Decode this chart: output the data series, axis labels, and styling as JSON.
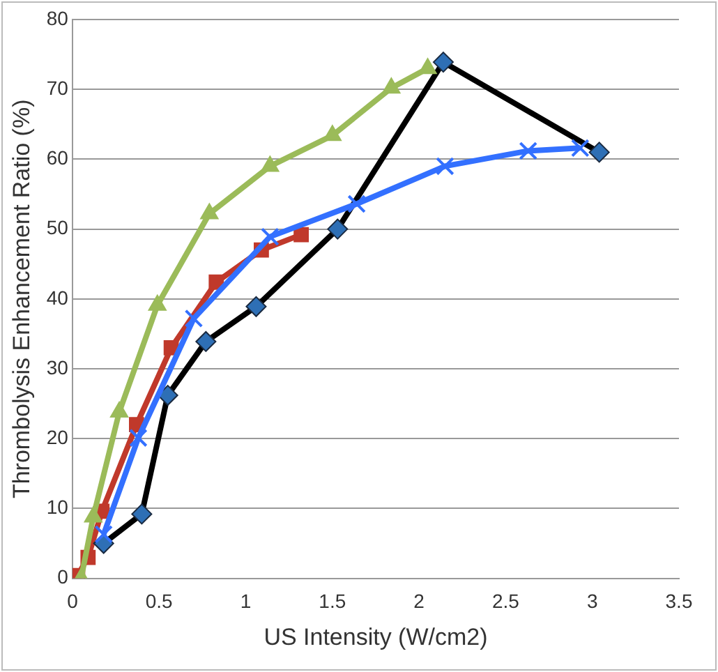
{
  "chart_data": {
    "type": "line",
    "xlabel": "US Intensity (W/cm2)",
    "ylabel": "Thrombolysis Enhancement Ratio (%)",
    "xlim": [
      0,
      3.5
    ],
    "xticks": [
      0,
      0.5,
      1,
      1.5,
      2,
      2.5,
      3,
      3.5
    ],
    "ylim": [
      0,
      80
    ],
    "yticks": [
      0,
      10,
      20,
      30,
      40,
      50,
      60,
      70,
      80
    ],
    "grid": "y",
    "legend": false,
    "series": [
      {
        "color": "#c0392b",
        "marker": "square",
        "x": [
          0.03,
          0.09,
          0.17,
          0.37,
          0.57,
          0.83,
          1.09,
          1.32
        ],
        "values": [
          0.4,
          3,
          9.6,
          22,
          33,
          42.4,
          47,
          49.2
        ]
      },
      {
        "color": "#000000",
        "marker": "diamond",
        "x": [
          0.18,
          0.4,
          0.55,
          0.77,
          1.06,
          1.53,
          2.14,
          3.04
        ],
        "values": [
          5,
          9.2,
          26.2,
          33.9,
          38.9,
          50,
          73.9,
          61
        ]
      },
      {
        "color": "#9bbb59",
        "marker": "triangle",
        "x": [
          0.05,
          0.12,
          0.27,
          0.49,
          0.79,
          1.14,
          1.5,
          1.84,
          2.05
        ],
        "values": [
          0,
          8.8,
          23.8,
          39.1,
          52.2,
          59,
          63.4,
          70.2,
          73
        ]
      },
      {
        "color": "#3370ff",
        "marker": "cross",
        "x": [
          0.18,
          0.38,
          0.7,
          1.14,
          1.64,
          2.15,
          2.63,
          2.93
        ],
        "values": [
          6.3,
          20.1,
          37.2,
          48.9,
          53.6,
          59,
          61.2,
          61.6
        ]
      }
    ]
  }
}
